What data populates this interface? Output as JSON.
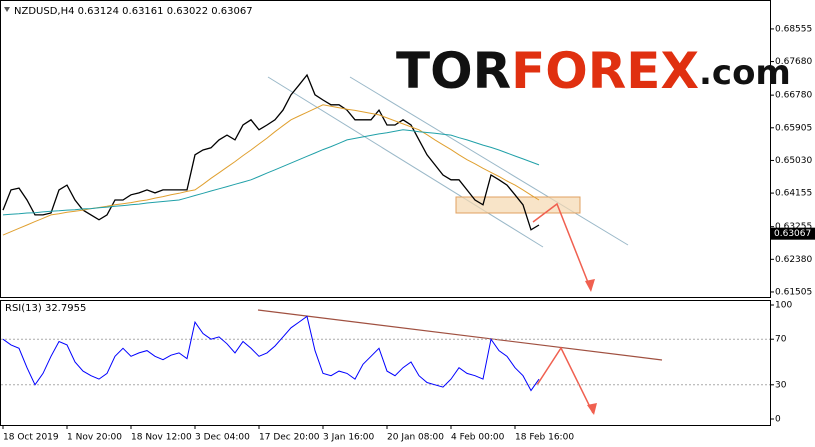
{
  "chart_data": [
    {
      "type": "line",
      "title": "NZDUSD,H4 0.63124 0.63161 0.63022 0.63067",
      "categories": [
        "18 Oct 2019",
        null,
        null,
        null,
        null,
        null,
        null,
        null,
        "1 Nov 20:00",
        null,
        null,
        null,
        null,
        null,
        null,
        null,
        "18 Nov 12:00",
        null,
        null,
        null,
        null,
        null,
        null,
        null,
        "3 Dec 04:00",
        null,
        null,
        null,
        null,
        null,
        null,
        null,
        "17 Dec 20:00",
        null,
        null,
        null,
        null,
        null,
        null,
        null,
        "3 Jan 16:00",
        null,
        null,
        null,
        null,
        null,
        null,
        null,
        "20 Jan 08:00",
        null,
        null,
        null,
        null,
        null,
        null,
        null,
        "4 Feb 00:00",
        null,
        null,
        null,
        null,
        null,
        null,
        null,
        "18 Feb 16:00",
        null,
        null,
        null
      ],
      "series": [
        {
          "color": "#000000",
          "values": [
            0.637,
            0.6424,
            0.6429,
            0.6397,
            0.6357,
            0.6357,
            0.6362,
            0.6424,
            0.6437,
            0.6397,
            0.637,
            0.6357,
            0.6344,
            0.6357,
            0.6397,
            0.6397,
            0.6411,
            0.6416,
            0.6424,
            0.6416,
            0.6424,
            0.6424,
            0.6424,
            0.6424,
            0.6518,
            0.6531,
            0.6537,
            0.6558,
            0.6571,
            0.6558,
            0.6598,
            0.6612,
            0.6585,
            0.6598,
            0.6612,
            0.6638,
            0.6679,
            0.6705,
            0.6732,
            0.6679,
            0.6665,
            0.6652,
            0.6652,
            0.6638,
            0.6612,
            0.6612,
            0.6612,
            0.6638,
            0.6598,
            0.6598,
            0.6612,
            0.6598,
            0.6558,
            0.6518,
            0.6491,
            0.6464,
            0.6451,
            0.6451,
            0.6424,
            0.6397,
            0.6384,
            0.6464,
            0.6451,
            0.6437,
            0.6411,
            0.6384,
            0.6317,
            0.633
          ]
        },
        {
          "color": "#e0a030",
          "values": [
            0.6303,
            0.6312,
            0.6321,
            0.633,
            0.6339,
            0.6348,
            0.6357,
            0.636,
            0.6364,
            0.6367,
            0.637,
            0.6374,
            0.6377,
            0.638,
            0.6384,
            0.6387,
            0.639,
            0.6394,
            0.6397,
            0.6402,
            0.6406,
            0.6411,
            0.6415,
            0.642,
            0.6424,
            0.6439,
            0.6455,
            0.647,
            0.6485,
            0.65,
            0.6516,
            0.6531,
            0.6547,
            0.6563,
            0.658,
            0.6596,
            0.6612,
            0.6622,
            0.6632,
            0.6642,
            0.6652,
            0.6648,
            0.6644,
            0.664,
            0.6637,
            0.6633,
            0.6629,
            0.6625,
            0.6617,
            0.6609,
            0.6601,
            0.6593,
            0.6585,
            0.6572,
            0.6558,
            0.6545,
            0.6532,
            0.6518,
            0.6505,
            0.6494,
            0.6482,
            0.6471,
            0.646,
            0.6448,
            0.6437,
            0.6424,
            0.641,
            0.6397
          ]
        },
        {
          "color": "#20a0a8",
          "values": [
            0.6357,
            0.6359,
            0.636,
            0.6362,
            0.6363,
            0.6365,
            0.6367,
            0.6368,
            0.637,
            0.6371,
            0.6373,
            0.6374,
            0.6376,
            0.6378,
            0.638,
            0.6382,
            0.6384,
            0.6386,
            0.6389,
            0.6391,
            0.6393,
            0.6395,
            0.6397,
            0.6403,
            0.6409,
            0.6415,
            0.6421,
            0.6427,
            0.6433,
            0.6439,
            0.6445,
            0.6451,
            0.646,
            0.6469,
            0.6478,
            0.6487,
            0.6496,
            0.6505,
            0.6514,
            0.6523,
            0.6532,
            0.654,
            0.6549,
            0.6558,
            0.6562,
            0.6566,
            0.657,
            0.6574,
            0.6577,
            0.6581,
            0.6585,
            0.6583,
            0.658,
            0.6578,
            0.6576,
            0.6573,
            0.6571,
            0.6564,
            0.6558,
            0.6551,
            0.6544,
            0.6538,
            0.6531,
            0.6523,
            0.6515,
            0.6507,
            0.6499,
            0.6491
          ]
        }
      ],
      "ylim": [
        0.6137,
        0.6933
      ],
      "yticks": [
        0.68555,
        {
          "value": 0.6768,
          "label": "0.67680"
        },
        {
          "value": 0.6678,
          "label": "0.66780"
        },
        0.65905,
        {
          "value": 0.6503,
          "label": "0.65030"
        },
        0.64155,
        0.63255,
        {
          "value": 0.6238,
          "label": "0.62380"
        },
        0.61505
      ],
      "last_price": 0.63067,
      "logo_parts": [
        "TOR",
        "FOREX",
        ".com"
      ]
    },
    {
      "type": "line",
      "title": "RSI(13) 32.7955",
      "series": [
        {
          "color": "#0000ff",
          "values": [
            70,
            65,
            62,
            45,
            30,
            40,
            55,
            68,
            65,
            50,
            42,
            38,
            35,
            40,
            55,
            62,
            55,
            58,
            60,
            55,
            52,
            56,
            58,
            53,
            85,
            75,
            70,
            72,
            66,
            58,
            68,
            62,
            55,
            58,
            64,
            72,
            80,
            85,
            90,
            60,
            40,
            38,
            42,
            40,
            35,
            48,
            55,
            62,
            42,
            38,
            45,
            50,
            38,
            32,
            30,
            28,
            35,
            45,
            40,
            38,
            35,
            70,
            60,
            55,
            45,
            38,
            25,
            35
          ]
        }
      ],
      "ylim": [
        0,
        100
      ],
      "yticks": [
        0,
        30,
        70,
        100
      ]
    }
  ]
}
